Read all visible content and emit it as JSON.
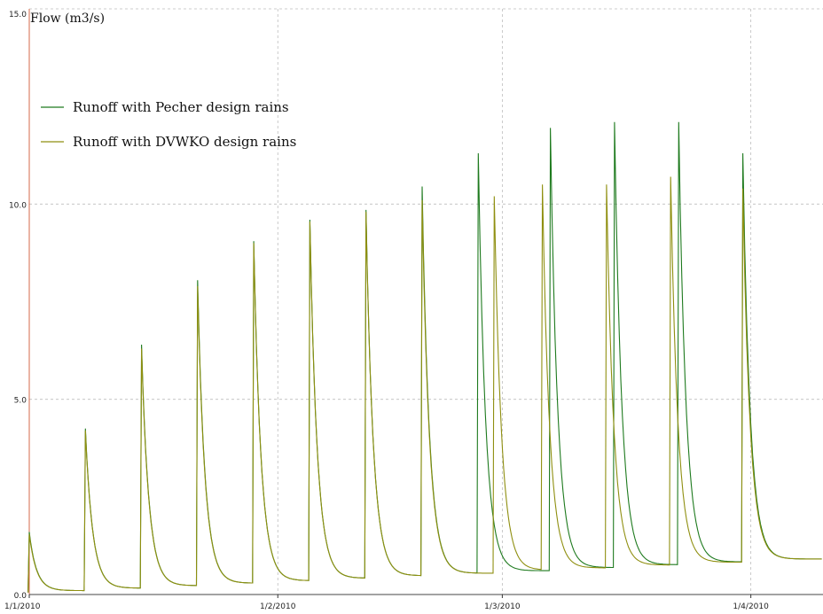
{
  "chart_data": {
    "type": "line",
    "title": "",
    "ylabel": "Flow (m3/s)",
    "xlabel": "",
    "ylim": [
      0,
      15
    ],
    "yticks": [
      "0.0",
      "5.0",
      "10.0",
      "15.0"
    ],
    "xticks": [
      "1/1/2010",
      "1/2/2010",
      "1/3/2010",
      "1/4/2010"
    ],
    "grid": true,
    "legend_position": "top-left",
    "series": [
      {
        "name": "Runoff with Pecher design rains",
        "color": "#1e7a1e",
        "peaks": [
          {
            "date": "2010-01-01",
            "value": 1.6
          },
          {
            "date": "2010-01-08",
            "value": 4.25
          },
          {
            "date": "2010-01-15",
            "value": 6.4
          },
          {
            "date": "2010-01-22",
            "value": 8.05
          },
          {
            "date": "2010-01-29",
            "value": 9.05
          },
          {
            "date": "2010-02-05",
            "value": 9.6
          },
          {
            "date": "2010-02-12",
            "value": 9.85
          },
          {
            "date": "2010-02-19",
            "value": 10.45
          },
          {
            "date": "2010-02-26",
            "value": 11.3
          },
          {
            "date": "2010-03-07",
            "value": 11.95
          },
          {
            "date": "2010-03-15",
            "value": 12.1
          },
          {
            "date": "2010-03-23",
            "value": 12.1
          },
          {
            "date": "2010-03-31",
            "value": 11.3
          }
        ]
      },
      {
        "name": "Runoff with DVWKO design rains",
        "color": "#8f8f10",
        "peaks": [
          {
            "date": "2010-01-01",
            "value": 1.55
          },
          {
            "date": "2010-01-08",
            "value": 4.2
          },
          {
            "date": "2010-01-15",
            "value": 6.3
          },
          {
            "date": "2010-01-22",
            "value": 7.9
          },
          {
            "date": "2010-01-29",
            "value": 9.0
          },
          {
            "date": "2010-02-05",
            "value": 9.55
          },
          {
            "date": "2010-02-12",
            "value": 9.8
          },
          {
            "date": "2010-02-19",
            "value": 10.1
          },
          {
            "date": "2010-02-28",
            "value": 10.2
          },
          {
            "date": "2010-03-06",
            "value": 10.5
          },
          {
            "date": "2010-03-14",
            "value": 10.5
          },
          {
            "date": "2010-03-22",
            "value": 10.7
          },
          {
            "date": "2010-03-31",
            "value": 10.4
          }
        ]
      }
    ]
  }
}
